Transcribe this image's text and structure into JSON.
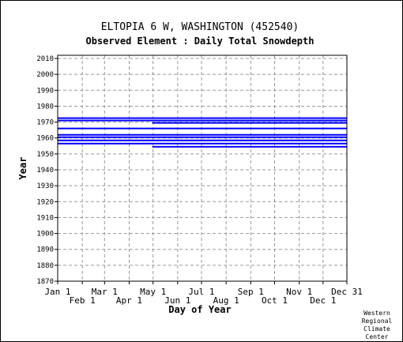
{
  "chart_data": {
    "type": "bar",
    "title": "ELTOPIA 6 W, WASHINGTON   (452540)",
    "subtitle": "Observed Element : Daily Total Snowdepth",
    "xlabel": "Day of Year",
    "ylabel": "Year",
    "xlim": [
      1,
      365
    ],
    "ylim": [
      1870,
      2012
    ],
    "y_ticks": [
      1870,
      1880,
      1890,
      1900,
      1910,
      1920,
      1930,
      1940,
      1950,
      1960,
      1970,
      1980,
      1990,
      2000,
      2010
    ],
    "x_ticks_upper": [
      {
        "label": "Jan 1",
        "day": 1
      },
      {
        "label": "Mar 1",
        "day": 60
      },
      {
        "label": "May 1",
        "day": 121
      },
      {
        "label": "Jul 1",
        "day": 182
      },
      {
        "label": "Sep 1",
        "day": 244
      },
      {
        "label": "Nov 1",
        "day": 305
      },
      {
        "label": "Dec 31",
        "day": 365
      }
    ],
    "x_ticks_lower": [
      {
        "label": "Feb 1",
        "day": 32
      },
      {
        "label": "Apr 1",
        "day": 91
      },
      {
        "label": "Jun 1",
        "day": 152
      },
      {
        "label": "Aug 1",
        "day": 213
      },
      {
        "label": "Oct 1",
        "day": 274
      },
      {
        "label": "Dec 1",
        "day": 335
      }
    ],
    "grid": true,
    "bar_color": "#0000ff",
    "segments": [
      {
        "year": 1972.5,
        "start": 1,
        "end": 365,
        "height": 1
      },
      {
        "year": 1971,
        "start": 1,
        "end": 365,
        "height": 1
      },
      {
        "year": 1969.5,
        "start": 120,
        "end": 365,
        "height": 1
      },
      {
        "year": 1966,
        "start": 1,
        "end": 365,
        "height": 1
      },
      {
        "year": 1962,
        "start": 1,
        "end": 365,
        "height": 1
      },
      {
        "year": 1960.5,
        "start": 1,
        "end": 365,
        "height": 1
      },
      {
        "year": 1958.5,
        "start": 1,
        "end": 365,
        "height": 1
      },
      {
        "year": 1956.5,
        "start": 1,
        "end": 365,
        "height": 1
      },
      {
        "year": 1954.5,
        "start": 120,
        "end": 365,
        "height": 1
      }
    ]
  },
  "credit": [
    "Western",
    "Regional",
    "Climate",
    "Center"
  ]
}
